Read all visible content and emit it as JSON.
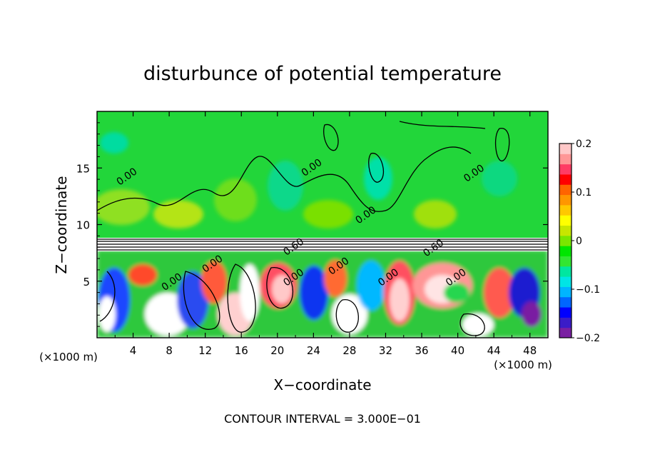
{
  "chart_data": {
    "type": "heatmap",
    "title": "disturbunce of potential temperature",
    "xlabel": "X−coordinate",
    "ylabel": "Z−coordinate",
    "x_unit_left": "(×1000 m)",
    "x_unit_right": "(×1000 m)",
    "xlim": [
      0,
      50
    ],
    "ylim": [
      0,
      20
    ],
    "x_ticks": [
      4,
      8,
      12,
      16,
      20,
      24,
      28,
      32,
      36,
      40,
      44,
      48
    ],
    "x_tick_labels": [
      "4",
      "8",
      "12",
      "16",
      "20",
      "24",
      "28",
      "32",
      "36",
      "40",
      "44",
      "48"
    ],
    "y_ticks": [
      5,
      10,
      15
    ],
    "y_tick_labels": [
      "5",
      "10",
      "15"
    ],
    "footer": "CONTOUR INTERVAL = 3.000E−01",
    "colorbar": {
      "range": [
        -0.2,
        0.2
      ],
      "ticks": [
        0.2,
        0.1,
        0,
        -0.1,
        -0.2
      ],
      "tick_labels": [
        "0.2",
        "0.1",
        "0",
        "−0.1",
        "−0.2"
      ],
      "colors": [
        "#7a1fa2",
        "#3a1cc8",
        "#0000ff",
        "#0066ff",
        "#00b4ff",
        "#00e5e5",
        "#00e6a0",
        "#32e632",
        "#00e600",
        "#7ae600",
        "#c8e600",
        "#ffff00",
        "#ffc800",
        "#ff9600",
        "#ff6400",
        "#ff0000",
        "#ff3c64",
        "#ff9696",
        "#ffc8c8"
      ]
    },
    "contour_labels": [
      {
        "text": "0.00",
        "x": 24.0,
        "z": 14.8
      },
      {
        "text": "0.00",
        "x": 3.5,
        "z": 14.0
      },
      {
        "text": "0.00",
        "x": 42.0,
        "z": 14.3
      },
      {
        "text": "0.00",
        "x": 30.0,
        "z": 10.6
      },
      {
        "text": "0.60",
        "x": 22.0,
        "z": 7.8
      },
      {
        "text": "0.60",
        "x": 37.5,
        "z": 7.7
      },
      {
        "text": "0.00",
        "x": 13.0,
        "z": 6.3
      },
      {
        "text": "0.00",
        "x": 8.5,
        "z": 4.7
      },
      {
        "text": "0.00",
        "x": 22.0,
        "z": 5.1
      },
      {
        "text": "0.00",
        "x": 27.0,
        "z": 6.1
      },
      {
        "text": "0.00",
        "x": 32.5,
        "z": 5.1
      },
      {
        "text": "0.00",
        "x": 40.0,
        "z": 5.1
      }
    ]
  }
}
